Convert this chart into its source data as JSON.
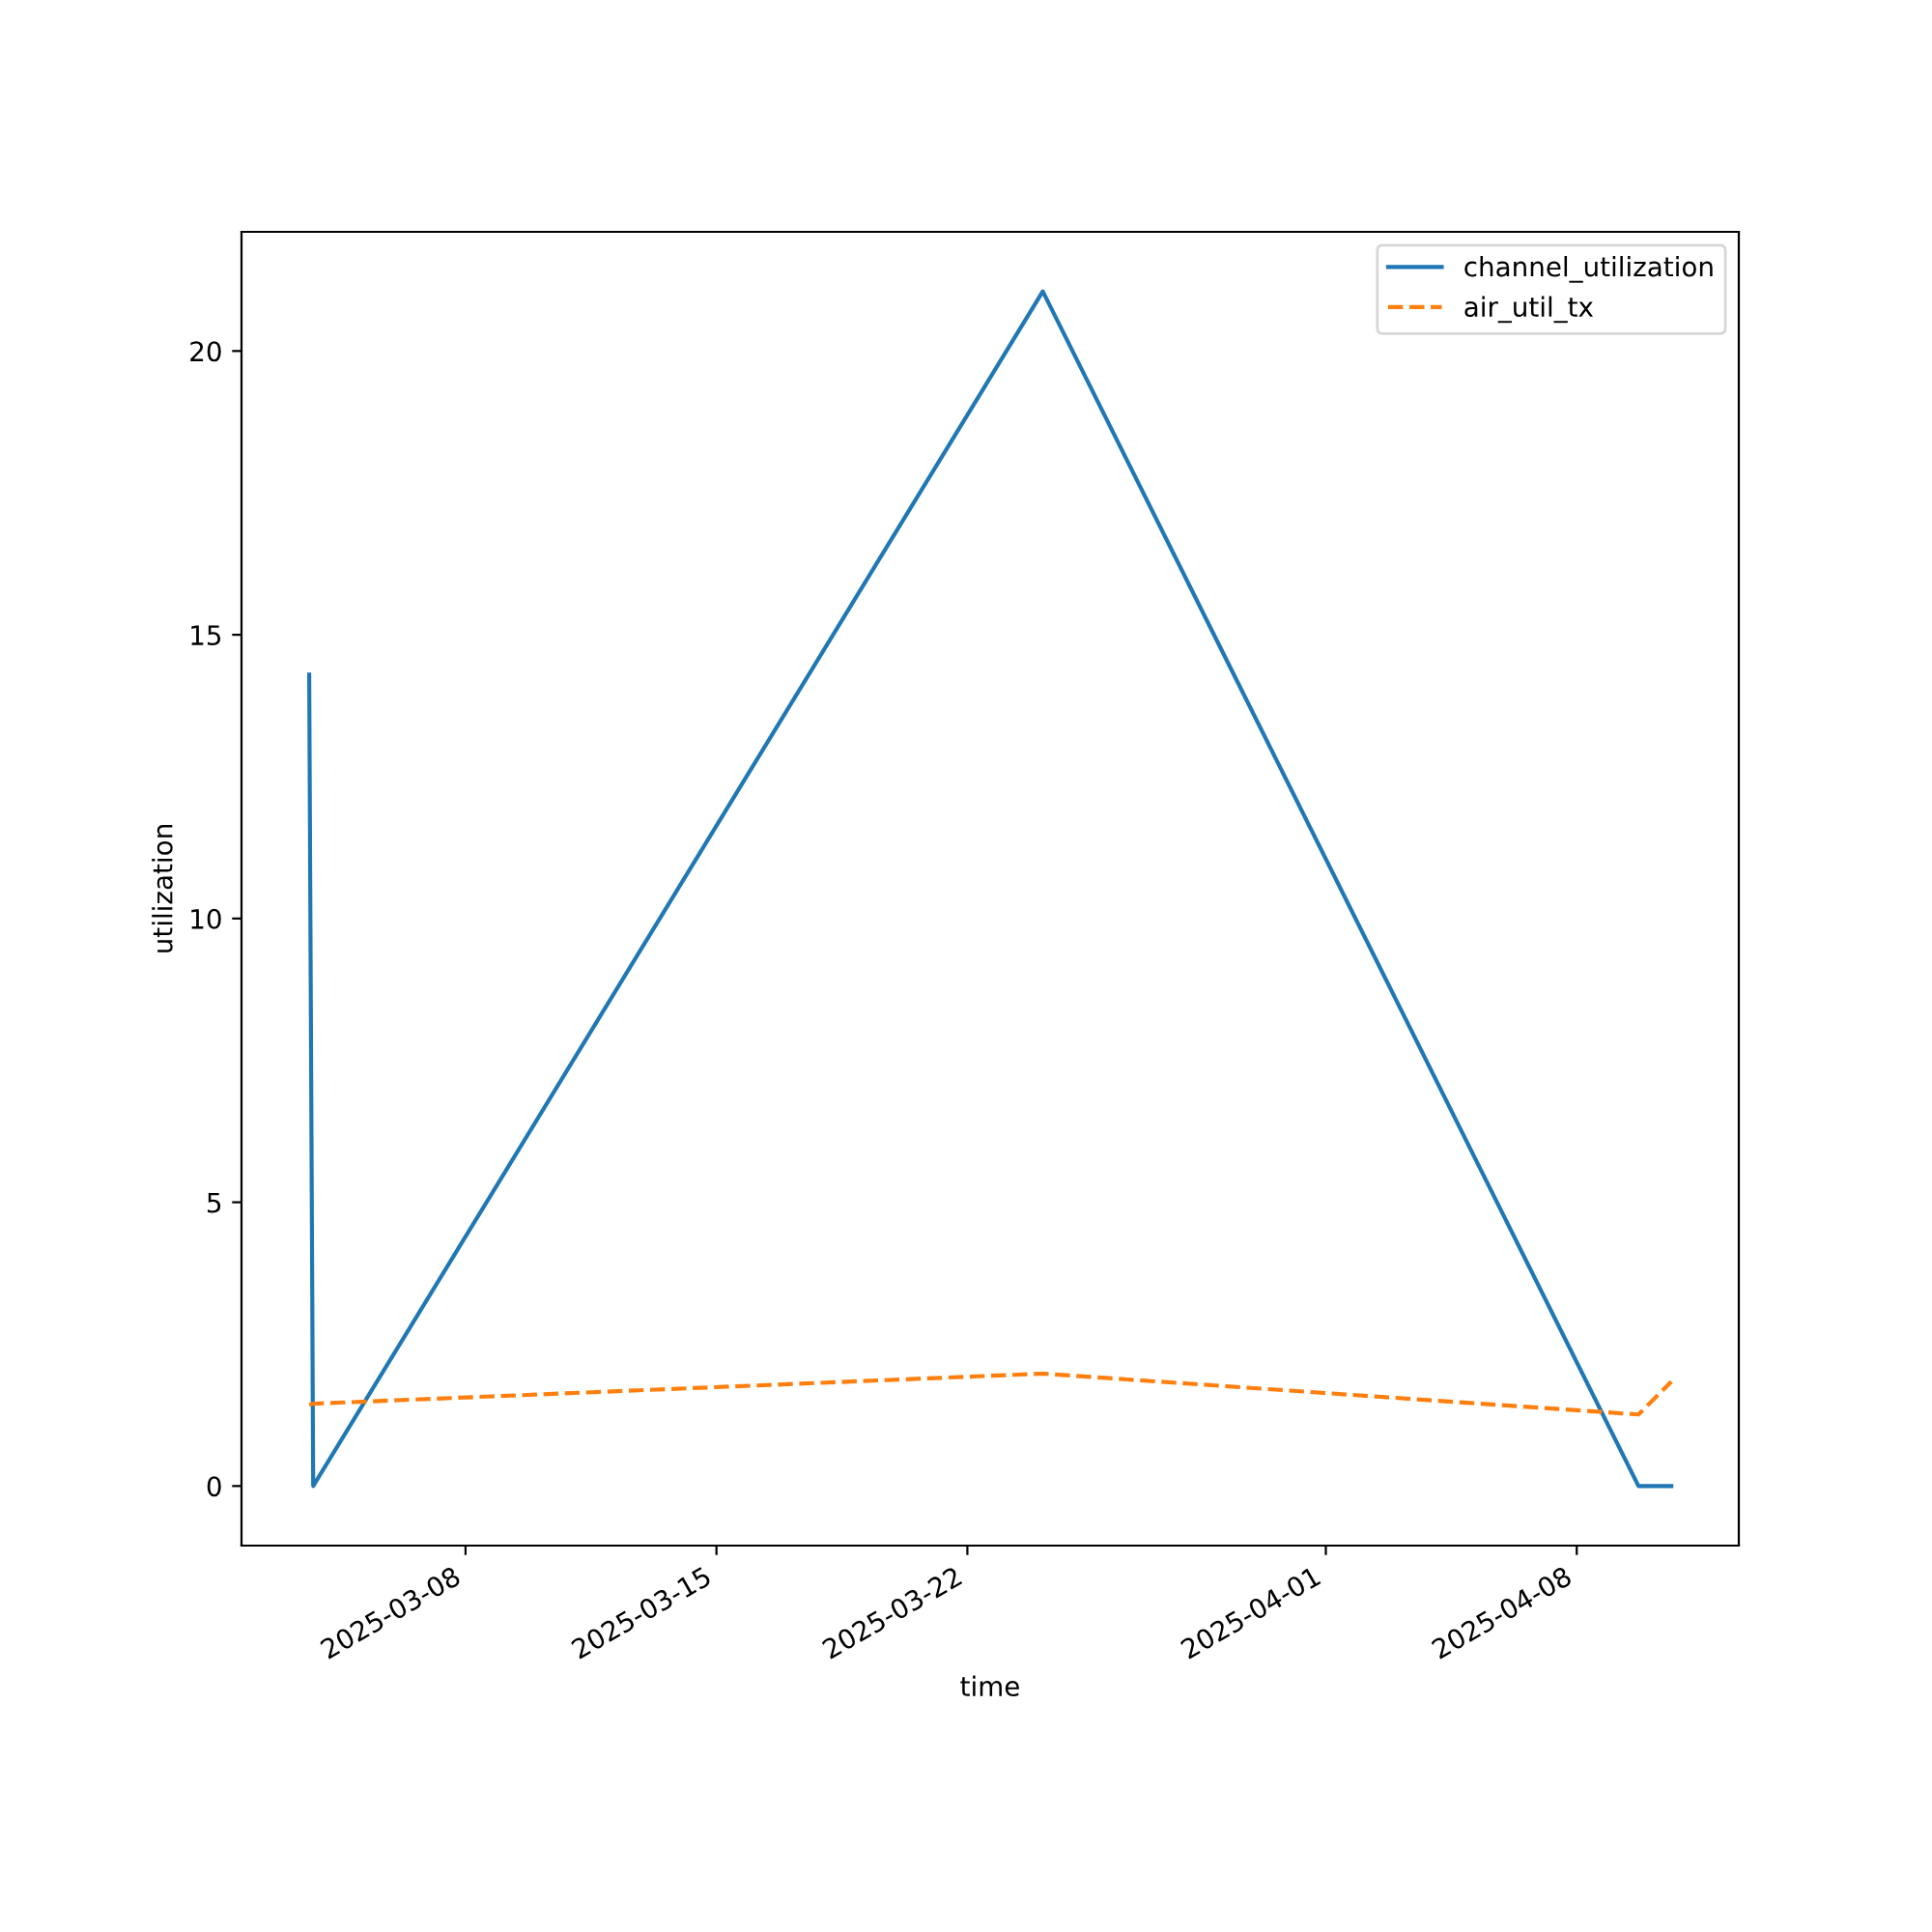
{
  "chart_data": {
    "type": "line",
    "xlabel": "time",
    "ylabel": "utilization",
    "x": [
      "2025-03-03T15:20",
      "2025-03-03T18:00",
      "2025-03-24T02:30",
      "2025-04-09T17:20",
      "2025-04-10T15:20"
    ],
    "series": [
      {
        "name": "channel_utilization",
        "color": "#1f77b4",
        "line_style": "solid",
        "values": [
          14.3,
          0,
          21.05,
          0,
          0
        ]
      },
      {
        "name": "air_util_tx",
        "color": "#ff7f0e",
        "line_style": "dashed",
        "values": [
          1.43,
          1.45,
          1.98,
          1.26,
          1.84
        ]
      }
    ],
    "xlim": [
      "2025-03-01T18:00",
      "2025-04-12T12:30"
    ],
    "xticks": [
      "2025-03-08",
      "2025-03-15",
      "2025-03-22",
      "2025-04-01",
      "2025-04-08"
    ],
    "ylim": [
      -1.05,
      22.1
    ],
    "yticks": [
      0,
      5,
      10,
      15,
      20
    ],
    "legend": "top right",
    "grid": false,
    "marker": "none"
  }
}
